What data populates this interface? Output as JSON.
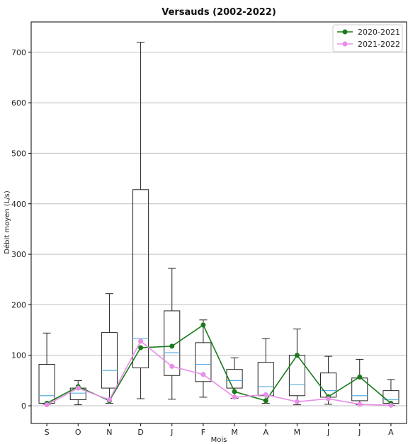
{
  "chart_data": {
    "type": "box",
    "title": "Versauds (2002-2022)",
    "xlabel": "Mois",
    "ylabel": "Débit moyen (L/s)",
    "ylim": [
      -35,
      760
    ],
    "yticks": [
      0,
      100,
      200,
      300,
      400,
      500,
      600,
      700
    ],
    "grid": "horizontal",
    "legend_position": "top-right",
    "categories": [
      "S",
      "O",
      "N",
      "D",
      "J",
      "F",
      "M",
      "A",
      "M",
      "J",
      "J",
      "A"
    ],
    "boxes": [
      {
        "whisker_low": 3,
        "q1": 5,
        "median": 20,
        "q3": 82,
        "whisker_high": 144
      },
      {
        "whisker_low": 2,
        "q1": 12,
        "median": 25,
        "q3": 35,
        "whisker_high": 50
      },
      {
        "whisker_low": 5,
        "q1": 35,
        "median": 70,
        "q3": 145,
        "whisker_high": 222
      },
      {
        "whisker_low": 14,
        "q1": 75,
        "median": 133,
        "q3": 428,
        "whisker_high": 720
      },
      {
        "whisker_low": 13,
        "q1": 60,
        "median": 105,
        "q3": 188,
        "whisker_high": 272
      },
      {
        "whisker_low": 17,
        "q1": 48,
        "median": 82,
        "q3": 125,
        "whisker_high": 170
      },
      {
        "whisker_low": 15,
        "q1": 35,
        "median": 50,
        "q3": 72,
        "whisker_high": 95
      },
      {
        "whisker_low": 5,
        "q1": 20,
        "median": 38,
        "q3": 86,
        "whisker_high": 133
      },
      {
        "whisker_low": 2,
        "q1": 20,
        "median": 42,
        "q3": 100,
        "whisker_high": 152
      },
      {
        "whisker_low": 3,
        "q1": 17,
        "median": 30,
        "q3": 65,
        "whisker_high": 98
      },
      {
        "whisker_low": 2,
        "q1": 10,
        "median": 20,
        "q3": 55,
        "whisker_high": 92
      },
      {
        "whisker_low": 1,
        "q1": 5,
        "median": 12,
        "q3": 30,
        "whisker_high": 52
      }
    ],
    "series": [
      {
        "name": "2020-2021",
        "color": "#1a7a1a",
        "values": [
          5,
          38,
          10,
          115,
          118,
          160,
          28,
          10,
          100,
          18,
          57,
          5
        ]
      },
      {
        "name": "2021-2022",
        "color": "#e88ee8",
        "values": [
          2,
          35,
          12,
          128,
          78,
          62,
          17,
          22,
          8,
          14,
          3,
          1
        ]
      }
    ],
    "colors": {
      "box": "#222222",
      "median": "#5aaee0",
      "grid": "#bfbfbf"
    }
  }
}
